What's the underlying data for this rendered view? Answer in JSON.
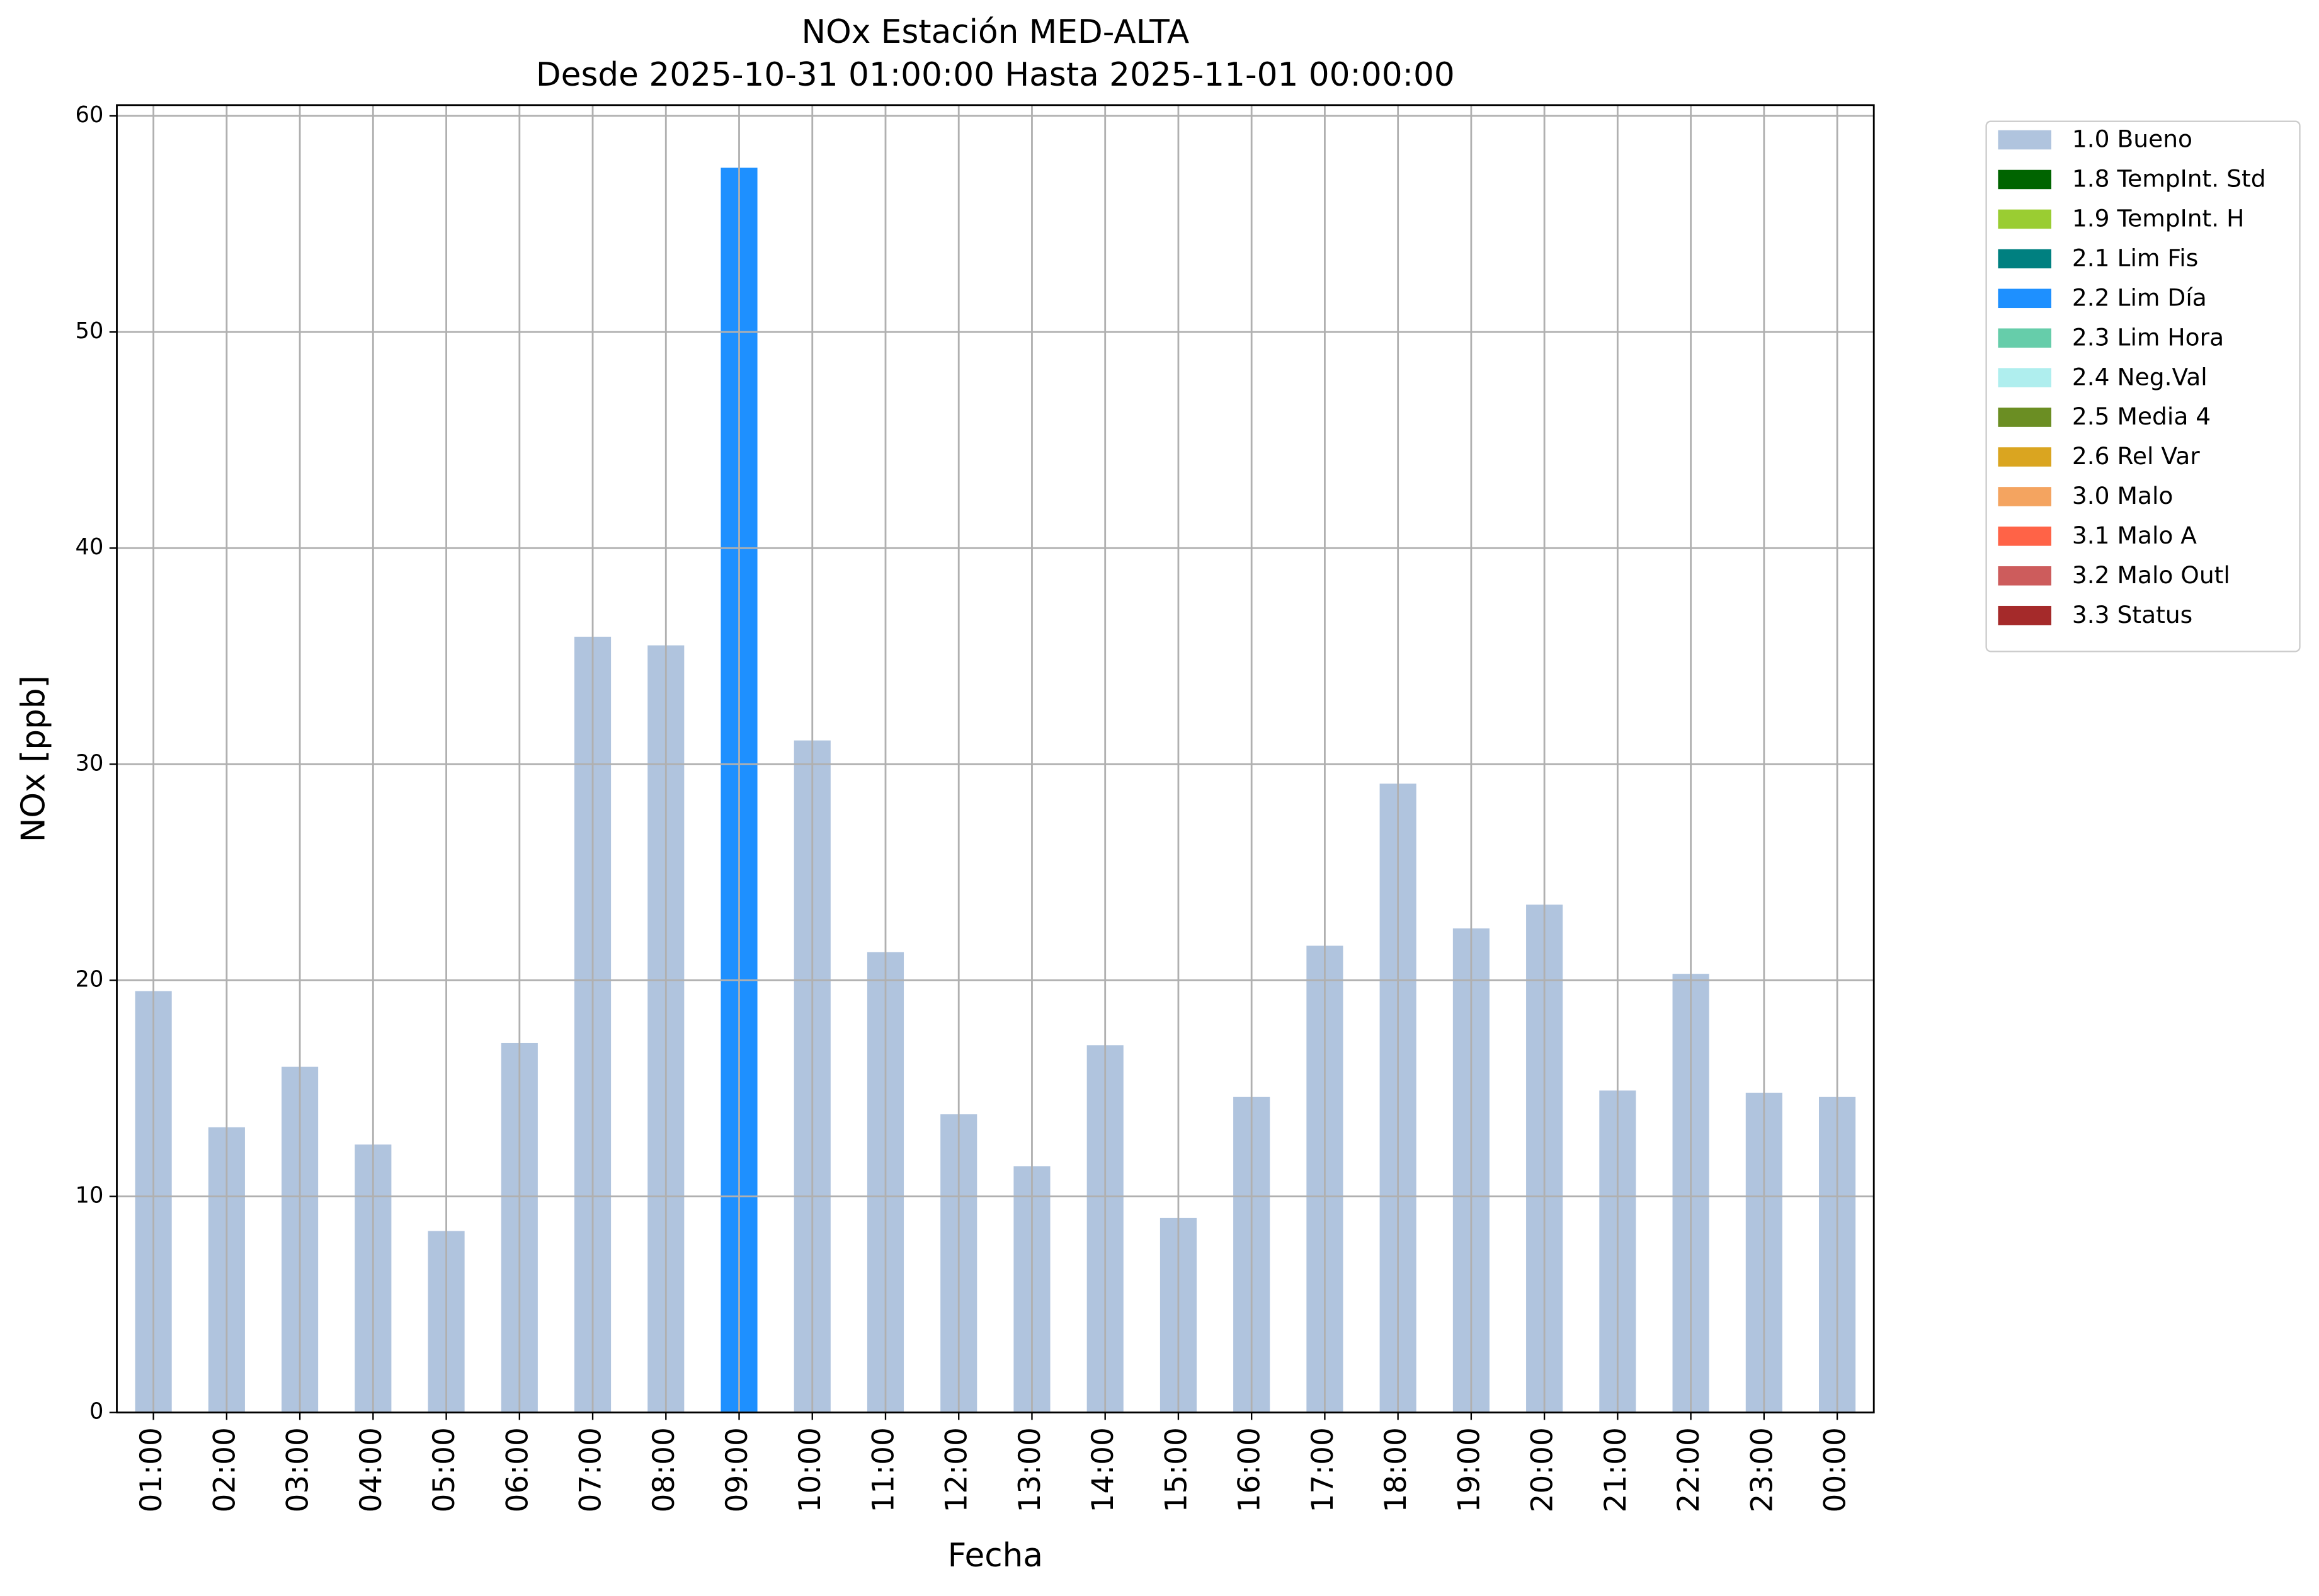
{
  "chart_data": {
    "type": "bar",
    "title": "NOx Estación MED-ALTA",
    "subtitle": "Desde 2025-10-31 01:00:00 Hasta 2025-11-01 00:00:00",
    "x_label": "Fecha",
    "y_label": "NOx [ppb]",
    "categories": [
      "01:00",
      "02:00",
      "03:00",
      "04:00",
      "05:00",
      "06:00",
      "07:00",
      "08:00",
      "09:00",
      "10:00",
      "11:00",
      "12:00",
      "13:00",
      "14:00",
      "15:00",
      "16:00",
      "17:00",
      "18:00",
      "19:00",
      "20:00",
      "21:00",
      "22:00",
      "23:00",
      "00:00"
    ],
    "values": [
      19.5,
      13.2,
      16.0,
      12.4,
      8.4,
      17.1,
      35.9,
      35.5,
      57.6,
      31.1,
      21.3,
      13.8,
      11.4,
      17.0,
      9.0,
      14.6,
      21.6,
      29.1,
      22.4,
      23.5,
      14.9,
      20.3,
      14.8,
      14.6
    ],
    "colors": [
      "#b0c4de",
      "#b0c4de",
      "#b0c4de",
      "#b0c4de",
      "#b0c4de",
      "#b0c4de",
      "#b0c4de",
      "#b0c4de",
      "#1e90ff",
      "#b0c4de",
      "#b0c4de",
      "#b0c4de",
      "#b0c4de",
      "#b0c4de",
      "#b0c4de",
      "#b0c4de",
      "#b0c4de",
      "#b0c4de",
      "#b0c4de",
      "#b0c4de",
      "#b0c4de",
      "#b0c4de",
      "#b0c4de",
      "#b0c4de"
    ],
    "legend": [
      {
        "name": "1.0 Bueno",
        "color": "#b0c4de"
      },
      {
        "name": "1.8 TempInt. Std",
        "color": "#006400"
      },
      {
        "name": "1.9 TempInt. H",
        "color": "#9acd32"
      },
      {
        "name": "2.1 Lim Fis",
        "color": "#008080"
      },
      {
        "name": "2.2 Lim Día",
        "color": "#1e90ff"
      },
      {
        "name": "2.3 Lim Hora",
        "color": "#66cdaa"
      },
      {
        "name": "2.4 Neg.Val",
        "color": "#afeeee"
      },
      {
        "name": "2.5 Media 4",
        "color": "#6b8e23"
      },
      {
        "name": "2.6 Rel Var",
        "color": "#daa520"
      },
      {
        "name": "3.0 Malo",
        "color": "#f4a460"
      },
      {
        "name": "3.1 Malo A",
        "color": "#ff6347"
      },
      {
        "name": "3.2 Malo Outl",
        "color": "#cd5c5c"
      },
      {
        "name": "3.3 Status",
        "color": "#a52a2a"
      }
    ],
    "legend_position": "outside right",
    "ylim": [
      0,
      60.5
    ],
    "yticks": [
      0,
      10,
      20,
      30,
      40,
      50,
      60
    ],
    "grid": true
  }
}
